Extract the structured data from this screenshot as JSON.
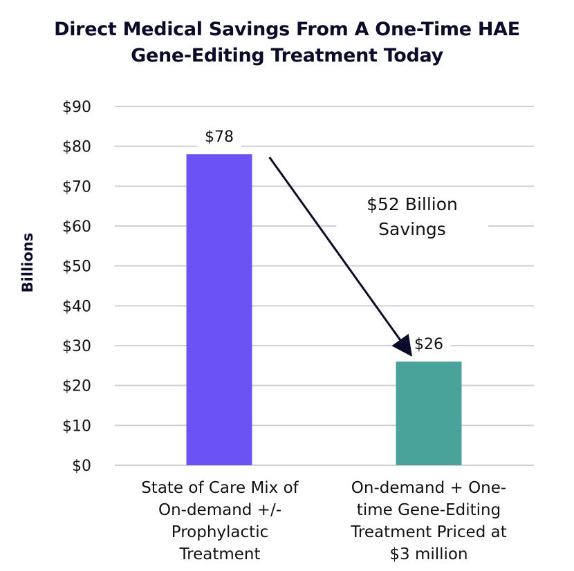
{
  "chart_data": {
    "type": "bar",
    "title": "Direct Medical Savings From A One-Time HAE Gene-Editing Treatment Today",
    "title_lines": [
      "Direct Medical Savings From A One-Time HAE",
      "Gene-Editing Treatment Today"
    ],
    "ylabel": "Billions",
    "ylim": [
      0,
      90
    ],
    "yticks": [
      0,
      10,
      20,
      30,
      40,
      50,
      60,
      70,
      80,
      90
    ],
    "ytick_labels": [
      "$0",
      "$10",
      "$20",
      "$30",
      "$40",
      "$50",
      "$60",
      "$70",
      "$80",
      "$90"
    ],
    "grid": true,
    "categories": [
      "State of Care Mix of On-demand +/- Prophylactic Treatment",
      "On-demand + One-time Gene-Editing Treatment Priced at $3 million"
    ],
    "category_lines": [
      [
        "State of Care Mix of",
        "On-demand +/-",
        "Prophylactic",
        "Treatment"
      ],
      [
        "On-demand + One-",
        "time Gene-Editing",
        "Treatment Priced at",
        "$3 million"
      ]
    ],
    "values": [
      78,
      26
    ],
    "data_labels": [
      "$78",
      "$26"
    ],
    "bar_colors": [
      "#6b52f5",
      "#4aa39a"
    ],
    "annotation": {
      "text": "$52 Billion Savings",
      "lines": [
        "$52 Billion",
        "Savings"
      ],
      "arrow_from_value": 78,
      "arrow_to_value": 26
    }
  }
}
